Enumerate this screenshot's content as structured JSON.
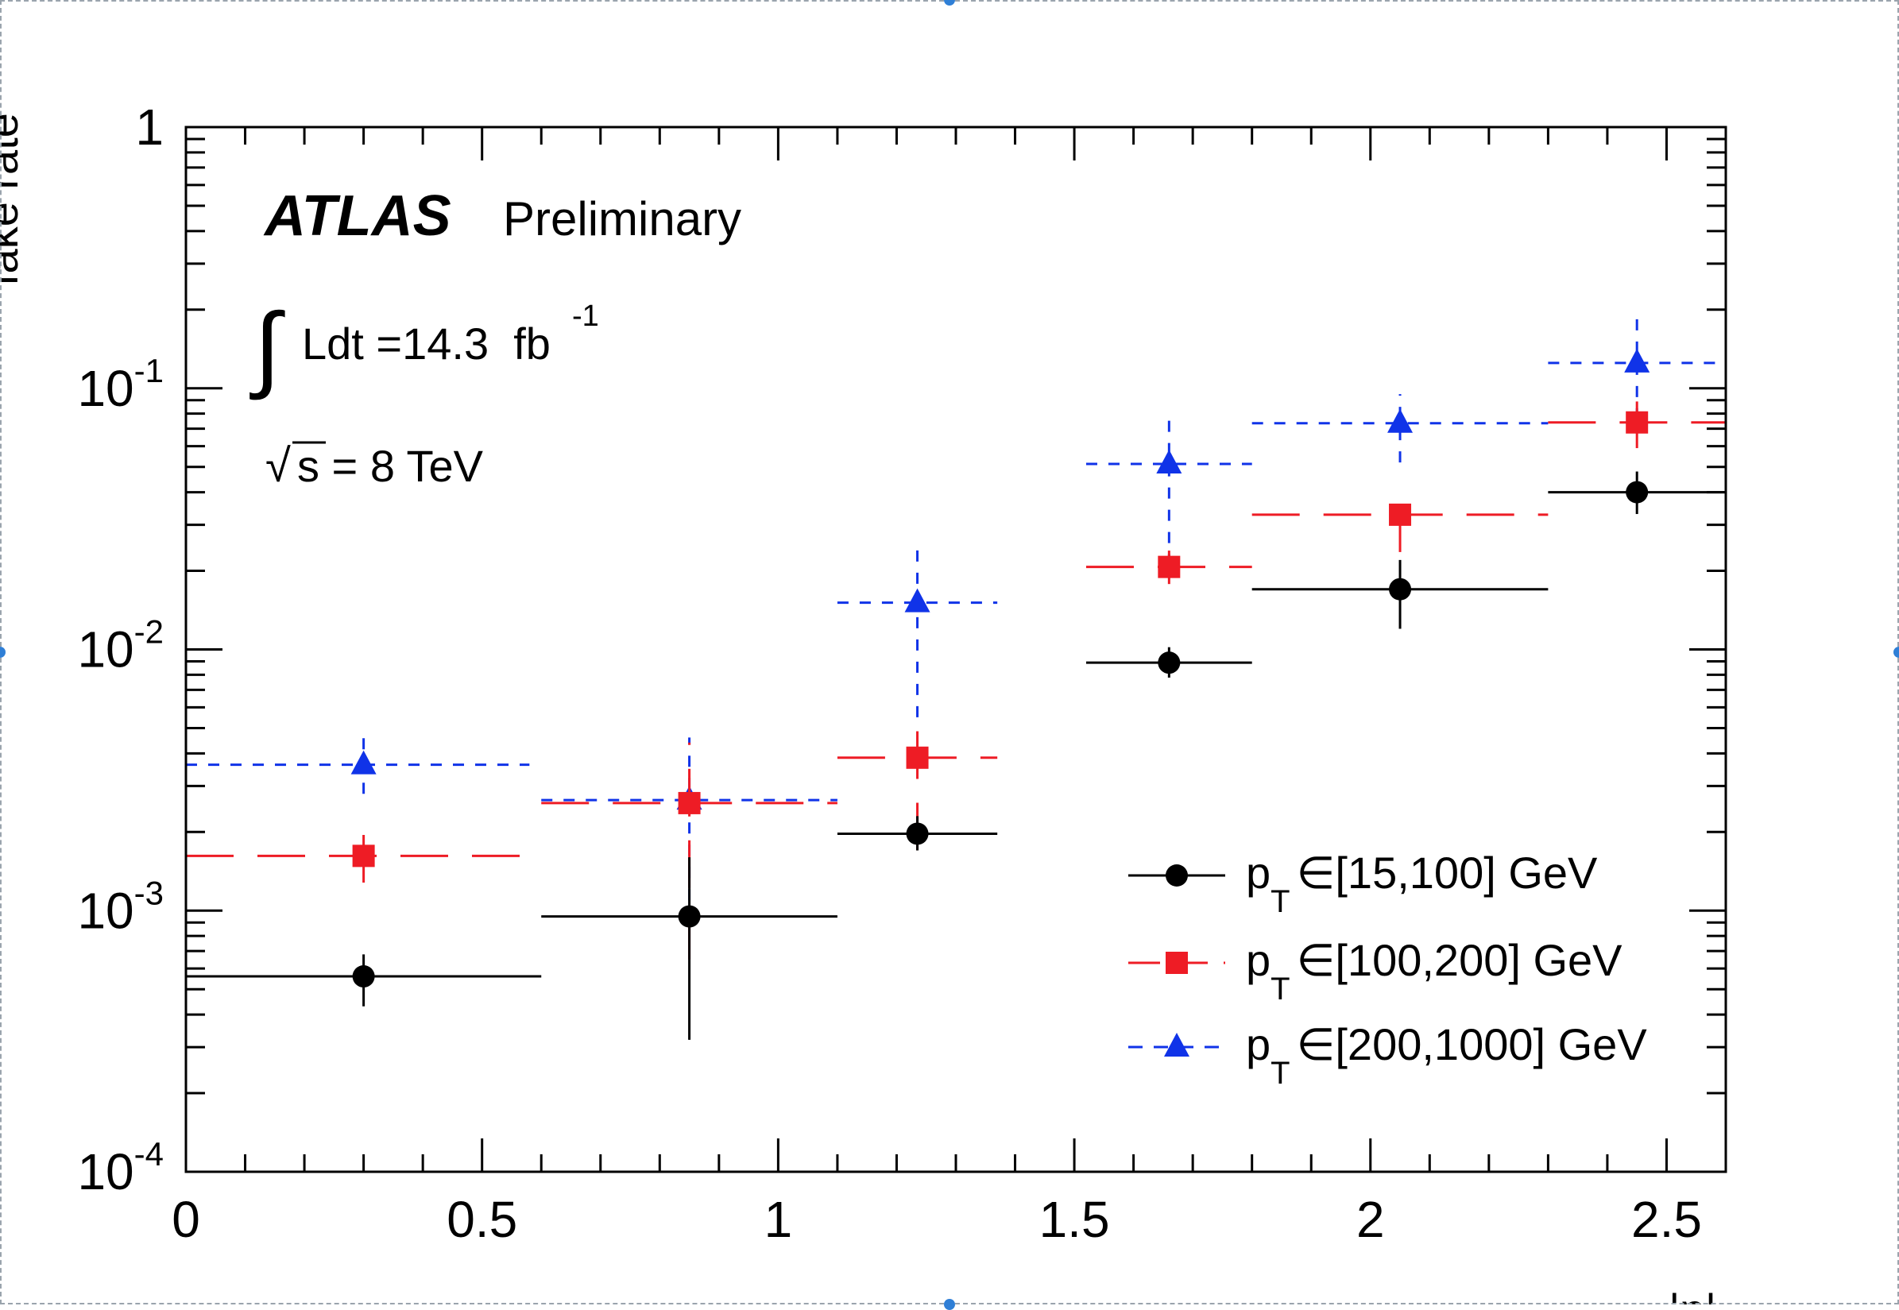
{
  "chart_data": {
    "type": "scatter",
    "x_scale": "linear",
    "y_scale": "log",
    "xlim": [
      0,
      2.6
    ],
    "ylim": [
      0.0001,
      1
    ],
    "x_ticks": [
      "0",
      "0.5",
      "1",
      "1.5",
      "2",
      "2.5"
    ],
    "y_ticks": [
      {
        "base": "1",
        "exp": ""
      },
      {
        "base": "10",
        "exp": "-1"
      },
      {
        "base": "10",
        "exp": "-2"
      },
      {
        "base": "10",
        "exp": "-3"
      },
      {
        "base": "10",
        "exp": "-4"
      }
    ],
    "y_tick_values": [
      1,
      0.1,
      0.01,
      0.001,
      0.0001
    ],
    "ylabel_fragment": "fake rate",
    "xlabel_fragment": "|η|",
    "annotations": {
      "experiment": "ATLAS",
      "status": "Preliminary",
      "lumi_text": "Ldt =14.3  fb",
      "lumi_exp": "-1",
      "energy_text": "s = 8 TeV"
    },
    "legend_position": "bottom-right",
    "series": [
      {
        "name_prefix": "p",
        "name_sub": "T",
        "name_range": "∈[15,100] GeV",
        "color": "#000000",
        "marker": "circle",
        "dash": "",
        "points": [
          {
            "x": 0.3,
            "xlo": 0.0,
            "xhi": 0.6,
            "y": 0.00056,
            "ylo": 0.00043,
            "yhi": 0.00068
          },
          {
            "x": 0.85,
            "xlo": 0.6,
            "xhi": 1.1,
            "y": 0.00095,
            "ylo": 0.00032,
            "yhi": 0.0016
          },
          {
            "x": 1.235,
            "xlo": 1.1,
            "xhi": 1.37,
            "y": 0.00197,
            "ylo": 0.0017,
            "yhi": 0.0023
          },
          {
            "x": 1.66,
            "xlo": 1.52,
            "xhi": 1.8,
            "y": 0.0089,
            "ylo": 0.0078,
            "yhi": 0.0102
          },
          {
            "x": 2.05,
            "xlo": 1.8,
            "xhi": 2.3,
            "y": 0.017,
            "ylo": 0.012,
            "yhi": 0.022
          },
          {
            "x": 2.45,
            "xlo": 2.3,
            "xhi": 2.6,
            "y": 0.04,
            "ylo": 0.033,
            "yhi": 0.048
          }
        ]
      },
      {
        "name_prefix": "p",
        "name_sub": "T",
        "name_range": "∈[100,200] GeV",
        "color": "#ee1c25",
        "marker": "square",
        "dash": "60,30",
        "points": [
          {
            "x": 0.3,
            "xlo": 0.0,
            "xhi": 0.6,
            "y": 0.00162,
            "ylo": 0.00128,
            "yhi": 0.002
          },
          {
            "x": 0.85,
            "xlo": 0.6,
            "xhi": 1.1,
            "y": 0.00258,
            "ylo": 0.00065,
            "yhi": 0.0044
          },
          {
            "x": 1.235,
            "xlo": 1.1,
            "xhi": 1.37,
            "y": 0.00385,
            "ylo": 0.0017,
            "yhi": 0.0058
          },
          {
            "x": 1.66,
            "xlo": 1.52,
            "xhi": 1.8,
            "y": 0.0207,
            "ylo": 0.0178,
            "yhi": 0.0239
          },
          {
            "x": 2.05,
            "xlo": 1.8,
            "xhi": 2.3,
            "y": 0.0328,
            "ylo": 0.0236,
            "yhi": 0.042
          },
          {
            "x": 2.45,
            "xlo": 2.3,
            "xhi": 2.6,
            "y": 0.074,
            "ylo": 0.059,
            "yhi": 0.089
          }
        ]
      },
      {
        "name_prefix": "p",
        "name_sub": "T",
        "name_range": "∈[200,1000] GeV",
        "color": "#1033e8",
        "marker": "triangle",
        "dash": "14,14",
        "points": [
          {
            "x": 0.3,
            "xlo": 0.0,
            "xhi": 0.58,
            "y": 0.00362,
            "ylo": 0.0028,
            "yhi": 0.0047
          },
          {
            "x": 0.85,
            "xlo": 0.6,
            "xhi": 1.1,
            "y": 0.00265,
            "ylo": 0.0009,
            "yhi": 0.0046
          },
          {
            "x": 1.235,
            "xlo": 1.1,
            "xhi": 1.37,
            "y": 0.0151,
            "ylo": 0.0055,
            "yhi": 0.025
          },
          {
            "x": 1.66,
            "xlo": 1.52,
            "xhi": 1.8,
            "y": 0.0513,
            "ylo": 0.021,
            "yhi": 0.082
          },
          {
            "x": 2.05,
            "xlo": 1.8,
            "xhi": 2.3,
            "y": 0.0735,
            "ylo": 0.052,
            "yhi": 0.095
          },
          {
            "x": 2.45,
            "xlo": 2.3,
            "xhi": 2.6,
            "y": 0.125,
            "ylo": 0.076,
            "yhi": 0.195
          }
        ]
      }
    ]
  }
}
